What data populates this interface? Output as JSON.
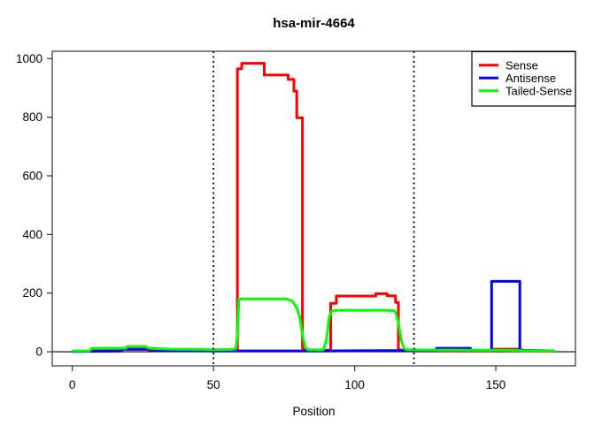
{
  "chart_data": {
    "type": "line",
    "title": "hsa-mir-4664",
    "xlabel": "Position",
    "ylabel": "",
    "xlim": [
      -7.1,
      178.2
    ],
    "ylim": [
      -48,
      1025
    ],
    "x_ticks": [
      0,
      50,
      100,
      150
    ],
    "y_ticks": [
      0,
      200,
      400,
      600,
      800,
      1000
    ],
    "grid": false,
    "vlines_dotted": [
      50,
      121
    ],
    "hline": 0,
    "axis_color": "#000000",
    "background": "#ffffff",
    "legend": {
      "position": "topright",
      "entries": [
        {
          "label": "Sense",
          "color": "#ff0000"
        },
        {
          "label": "Antisense",
          "color": "#0000ff"
        },
        {
          "label": "Tailed-Sense",
          "color": "#00ff00"
        }
      ]
    },
    "series": [
      {
        "name": "Sense",
        "color": "#ff0000",
        "points": [
          [
            0,
            2
          ],
          [
            6,
            2
          ],
          [
            7,
            5
          ],
          [
            16,
            5
          ],
          [
            17,
            12
          ],
          [
            26,
            12
          ],
          [
            27,
            6
          ],
          [
            40,
            4
          ],
          [
            50,
            5
          ],
          [
            56,
            7
          ],
          [
            58.5,
            7
          ],
          [
            58.5,
            965
          ],
          [
            60,
            965
          ],
          [
            60,
            984
          ],
          [
            68,
            984
          ],
          [
            68,
            944
          ],
          [
            76.5,
            944
          ],
          [
            76.5,
            929
          ],
          [
            78.5,
            929
          ],
          [
            78.5,
            889
          ],
          [
            79.5,
            889
          ],
          [
            79.5,
            798
          ],
          [
            81.5,
            798
          ],
          [
            81.5,
            12
          ],
          [
            82.5,
            7
          ],
          [
            90,
            5
          ],
          [
            91.5,
            5
          ],
          [
            91.5,
            165
          ],
          [
            93.5,
            165
          ],
          [
            93.5,
            190
          ],
          [
            107.5,
            190
          ],
          [
            107.5,
            198
          ],
          [
            111.5,
            198
          ],
          [
            111.5,
            191
          ],
          [
            114.5,
            191
          ],
          [
            114.5,
            168
          ],
          [
            115.5,
            168
          ],
          [
            115.5,
            8
          ],
          [
            117.5,
            4
          ],
          [
            121,
            3
          ],
          [
            135,
            3
          ],
          [
            148,
            3
          ],
          [
            148.5,
            9
          ],
          [
            158.5,
            9
          ],
          [
            159,
            3
          ],
          [
            165,
            2
          ],
          [
            171,
            2
          ]
        ]
      },
      {
        "name": "Antisense",
        "color": "#0000ff",
        "points": [
          [
            0,
            1
          ],
          [
            15,
            2
          ],
          [
            17,
            2
          ],
          [
            18,
            8
          ],
          [
            28,
            8
          ],
          [
            29,
            4
          ],
          [
            50,
            3
          ],
          [
            70,
            3
          ],
          [
            90,
            3
          ],
          [
            110,
            4
          ],
          [
            128,
            4
          ],
          [
            129,
            4
          ],
          [
            129,
            12
          ],
          [
            141,
            12
          ],
          [
            141,
            5
          ],
          [
            148,
            5
          ],
          [
            148.5,
            5
          ],
          [
            148.5,
            240
          ],
          [
            158.5,
            240
          ],
          [
            158.5,
            7
          ],
          [
            160,
            5
          ],
          [
            165,
            4
          ],
          [
            171,
            3
          ]
        ]
      },
      {
        "name": "Tailed-Sense",
        "color": "#00ff00",
        "points": [
          [
            0,
            3
          ],
          [
            6,
            3
          ],
          [
            7,
            12
          ],
          [
            19,
            12
          ],
          [
            19.5,
            18
          ],
          [
            26,
            18
          ],
          [
            27,
            12
          ],
          [
            35,
            9
          ],
          [
            45,
            8
          ],
          [
            50,
            7
          ],
          [
            57,
            8
          ],
          [
            58,
            12
          ],
          [
            58.5,
            60
          ],
          [
            59,
            180
          ],
          [
            76,
            180
          ],
          [
            78,
            172
          ],
          [
            79.5,
            150
          ],
          [
            80.5,
            120
          ],
          [
            81.5,
            60
          ],
          [
            82.5,
            15
          ],
          [
            83.5,
            7
          ],
          [
            88,
            6
          ],
          [
            89,
            8
          ],
          [
            90,
            40
          ],
          [
            91,
            120
          ],
          [
            92,
            140
          ],
          [
            95,
            142
          ],
          [
            105,
            141
          ],
          [
            110,
            142
          ],
          [
            114,
            140
          ],
          [
            114.5,
            135
          ],
          [
            115.5,
            100
          ],
          [
            116.5,
            40
          ],
          [
            117.5,
            12
          ],
          [
            118.5,
            7
          ],
          [
            125,
            6
          ],
          [
            135,
            6
          ],
          [
            145,
            5
          ],
          [
            152,
            5
          ],
          [
            160,
            4
          ],
          [
            166,
            3
          ],
          [
            171,
            3
          ]
        ]
      }
    ]
  }
}
